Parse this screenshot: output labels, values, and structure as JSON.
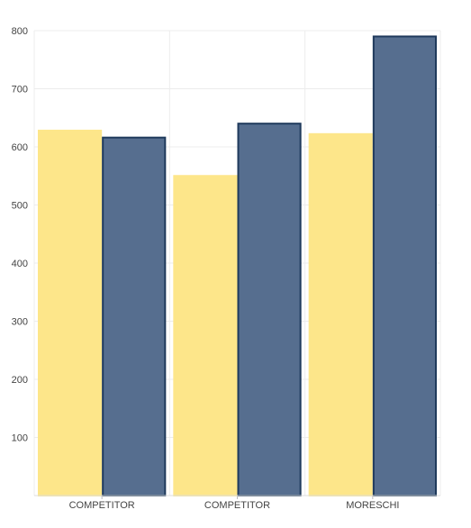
{
  "chart_data": {
    "type": "bar",
    "categories": [
      "COMPETITOR",
      "COMPETITOR",
      "MORESCHI"
    ],
    "series": [
      {
        "values": [
          628,
          550,
          622
        ],
        "color": "#fde68a",
        "stroke": "#fde68a"
      },
      {
        "values": [
          616,
          640,
          790
        ],
        "color": "#566e8f",
        "stroke": "#1f3a5c"
      }
    ],
    "ylim": [
      0,
      800
    ],
    "yticks": [
      100,
      200,
      300,
      400,
      500,
      600,
      700,
      800
    ],
    "grid": true,
    "legend": "none",
    "title": "",
    "xlabel": "",
    "ylabel": ""
  }
}
